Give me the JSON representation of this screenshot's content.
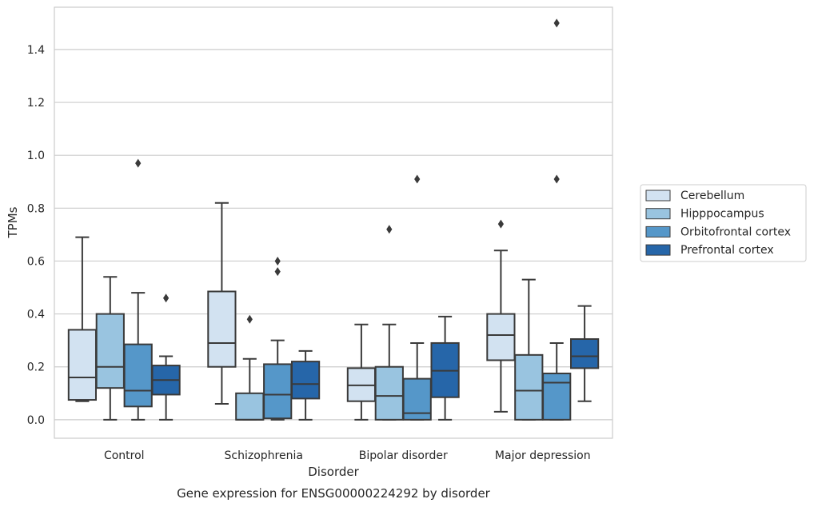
{
  "caption": "Gene expression for ENSG00000224292 by disorder",
  "colors": {
    "Cerebellum": "#d2e2f1",
    "Hipppocampus": "#99c4e0",
    "Orbitofrontal cortex": "#5597c9",
    "Prefrontal cortex": "#2666a9",
    "line": "#3a3a3a",
    "grid": "#cccccc",
    "frame": "#cccccc"
  },
  "chart_data": {
    "type": "box",
    "xlabel": "Disorder",
    "ylabel": "TPMs",
    "ylim": [
      -0.07,
      1.56
    ],
    "yticks": [
      0.0,
      0.2,
      0.4,
      0.6,
      0.8,
      1.0,
      1.2,
      1.4
    ],
    "ytick_labels": [
      "0.0",
      "0.2",
      "0.4",
      "0.6",
      "0.8",
      "1.0",
      "1.2",
      "1.4"
    ],
    "grid": "horizontal",
    "legend_position": "right-center",
    "categories": [
      "Control",
      "Schizophrenia",
      "Bipolar disorder",
      "Major depression"
    ],
    "series": [
      {
        "name": "Cerebellum",
        "boxes": [
          {
            "whislo": 0.07,
            "q1": 0.075,
            "med": 0.16,
            "q3": 0.34,
            "whishi": 0.69,
            "fliers": []
          },
          {
            "whislo": 0.06,
            "q1": 0.2,
            "med": 0.29,
            "q3": 0.485,
            "whishi": 0.82,
            "fliers": []
          },
          {
            "whislo": 0.0,
            "q1": 0.07,
            "med": 0.13,
            "q3": 0.195,
            "whishi": 0.36,
            "fliers": []
          },
          {
            "whislo": 0.03,
            "q1": 0.225,
            "med": 0.32,
            "q3": 0.4,
            "whishi": 0.64,
            "fliers": [
              0.74
            ]
          }
        ]
      },
      {
        "name": "Hipppocampus",
        "boxes": [
          {
            "whislo": 0.0,
            "q1": 0.12,
            "med": 0.2,
            "q3": 0.4,
            "whishi": 0.54,
            "fliers": []
          },
          {
            "whislo": 0.0,
            "q1": 0.0,
            "med": 0.0,
            "q3": 0.1,
            "whishi": 0.23,
            "fliers": [
              0.38
            ]
          },
          {
            "whislo": 0.0,
            "q1": 0.0,
            "med": 0.09,
            "q3": 0.2,
            "whishi": 0.36,
            "fliers": [
              0.72
            ]
          },
          {
            "whislo": 0.0,
            "q1": 0.0,
            "med": 0.11,
            "q3": 0.245,
            "whishi": 0.53,
            "fliers": []
          }
        ]
      },
      {
        "name": "Orbitofrontal cortex",
        "boxes": [
          {
            "whislo": 0.0,
            "q1": 0.05,
            "med": 0.11,
            "q3": 0.285,
            "whishi": 0.48,
            "fliers": [
              0.97
            ]
          },
          {
            "whislo": 0.0,
            "q1": 0.005,
            "med": 0.095,
            "q3": 0.21,
            "whishi": 0.3,
            "fliers": [
              0.56,
              0.6
            ]
          },
          {
            "whislo": 0.0,
            "q1": 0.0,
            "med": 0.025,
            "q3": 0.155,
            "whishi": 0.29,
            "fliers": [
              0.91
            ]
          },
          {
            "whislo": 0.0,
            "q1": 0.0,
            "med": 0.14,
            "q3": 0.175,
            "whishi": 0.29,
            "fliers": [
              0.91,
              1.5
            ]
          }
        ]
      },
      {
        "name": "Prefrontal cortex",
        "boxes": [
          {
            "whislo": 0.0,
            "q1": 0.095,
            "med": 0.15,
            "q3": 0.205,
            "whishi": 0.24,
            "fliers": [
              0.46
            ]
          },
          {
            "whislo": 0.0,
            "q1": 0.08,
            "med": 0.135,
            "q3": 0.22,
            "whishi": 0.26,
            "fliers": []
          },
          {
            "whislo": 0.0,
            "q1": 0.085,
            "med": 0.185,
            "q3": 0.29,
            "whishi": 0.39,
            "fliers": []
          },
          {
            "whislo": 0.07,
            "q1": 0.195,
            "med": 0.24,
            "q3": 0.305,
            "whishi": 0.43,
            "fliers": []
          }
        ]
      }
    ]
  }
}
